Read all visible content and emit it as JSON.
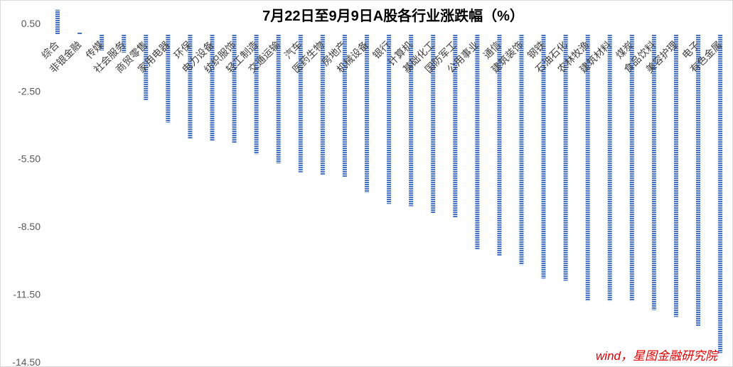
{
  "chart_data": {
    "type": "bar",
    "title": "7月22日至9月9日A股各行业涨跌幅（%）",
    "categories": [
      "综合",
      "非银金融",
      "传媒",
      "社会服务",
      "商贸零售",
      "家用电器",
      "环保",
      "电力设备",
      "纺织服饰",
      "轻工制造",
      "交通运输",
      "汽车",
      "医药生物",
      "房地产",
      "机械设备",
      "银行",
      "计算机",
      "基础化工",
      "国防军工",
      "公用事业",
      "通信",
      "建筑装饰",
      "钢铁",
      "石油石化",
      "农林牧渔",
      "建筑材料",
      "煤炭",
      "食品饮料",
      "美容护理",
      "电子",
      "有色金属"
    ],
    "values": [
      1.1,
      0.1,
      -0.7,
      -0.8,
      -2.9,
      -3.9,
      -4.6,
      -4.7,
      -4.8,
      -5.3,
      -5.7,
      -6.1,
      -6.2,
      -6.3,
      -7.0,
      -7.5,
      -7.6,
      -7.9,
      -8.1,
      -9.5,
      -9.8,
      -10.2,
      -10.8,
      -10.9,
      -11.8,
      -11.8,
      -11.8,
      -12.2,
      -12.5,
      -12.9,
      -14.1
    ],
    "ylim": [
      -14.5,
      1.5
    ],
    "yticks": [
      0.5,
      -2.5,
      -5.5,
      -8.5,
      -11.5,
      -14.5
    ],
    "ytick_labels": [
      "0.50",
      "-2.50",
      "-5.50",
      "-8.50",
      "-11.50",
      "-14.50"
    ],
    "grid": false,
    "legend": "none",
    "bar_color": "#4472C4",
    "bar_style": "striped"
  },
  "source": "wind，星图金融研究院",
  "colors": {
    "source_text": "#e00000",
    "bar": "#4472C4"
  }
}
